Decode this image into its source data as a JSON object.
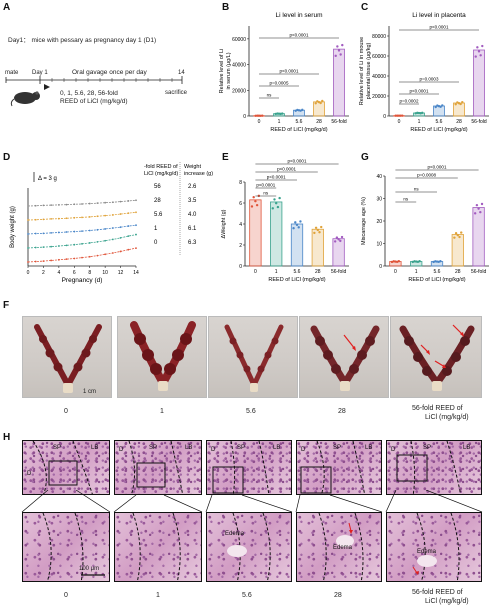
{
  "panels": {
    "A": "A",
    "B": "B",
    "C": "C",
    "D": "D",
    "E": "E",
    "F": "F",
    "G": "G",
    "H": "H"
  },
  "panel_a": {
    "day1_note": "Day1： mice with pessary as pregnancy day 1 (D1)",
    "mate": "mate",
    "day1": "Day 1",
    "day14": "14",
    "gavage": "Oral gavage once per day",
    "doses": "0, 1, 5.6, 28, 56-fold",
    "reed": "REED of LiCl (mg/kg/d)",
    "sacrifice": "sacrifice"
  },
  "panel_b": {
    "title": "Li level in serum",
    "ylabel_1": "Relative level of Li",
    "ylabel_2": "in serum (μg/L)",
    "yticks": [
      "0",
      "20000",
      "40000",
      "60000"
    ],
    "xticks": [
      "0",
      "1",
      "5.6",
      "28",
      "56-fold"
    ],
    "xlabel": "REED of LiCl (mg/kg/d)",
    "p_labels": [
      "ns",
      "p=0.0005",
      "p<0.0001",
      "p<0.0001"
    ]
  },
  "panel_c": {
    "title": "Li level in placenta",
    "ylabel_1": "Relative level of Li in mouse",
    "ylabel_2": "placental tissue (μg/kg)",
    "yticks": [
      "0",
      "20000",
      "40000",
      "60000",
      "80000"
    ],
    "xticks": [
      "0",
      "1",
      "5.6",
      "28",
      "56-fold"
    ],
    "xlabel": "REED of LiCl (mg/kg/d)",
    "p_labels": [
      "p=0.0002",
      "p<0.0001",
      "p=0.0003",
      "p<0.0001"
    ]
  },
  "panel_d": {
    "scale": "Δ = 3 g",
    "ylabel": "Body weight (g)",
    "xlabel": "Pregnancy (d)",
    "xticks": [
      "0",
      "2",
      "4",
      "6",
      "8",
      "10",
      "12",
      "14"
    ],
    "legend_head_1": "-fold REED of",
    "legend_head_2": "LiCl (mg/kg/d)",
    "legend_head_3": "Weight",
    "legend_head_4": "increase (g)",
    "rows": [
      {
        "dose": "56",
        "inc": "2.6",
        "color": "#8a8a8a"
      },
      {
        "dose": "28",
        "inc": "3.5",
        "color": "#e0a33a"
      },
      {
        "dose": "5.6",
        "inc": "4.0",
        "color": "#4a86c8"
      },
      {
        "dose": "1",
        "inc": "6.1",
        "color": "#3aa38e"
      },
      {
        "dose": "0",
        "inc": "6.3",
        "color": "#e0553a"
      }
    ]
  },
  "panel_e": {
    "ylabel": "ΔWeight (g)",
    "yticks": [
      "0",
      "2",
      "4",
      "6",
      "8"
    ],
    "xticks": [
      "0",
      "1",
      "5.6",
      "28",
      "56-fold"
    ],
    "xlabel": "REED of  LiCl (mg/kg/d)",
    "p_labels": [
      "p<0.0001",
      "p<0.0001",
      "p<0.0001",
      "p<0.0001",
      "ns"
    ]
  },
  "panel_g": {
    "ylabel": "Miscarrage age (%)",
    "yticks": [
      "0",
      "10",
      "20",
      "30",
      "40"
    ],
    "xticks": [
      "0",
      "1",
      "5.6",
      "28",
      "56-fold"
    ],
    "xlabel": "REED of LiCl (mg/kg/d)",
    "p_labels": [
      "p<0.0001",
      "p=0.0008",
      "ns",
      "ns"
    ]
  },
  "panel_f": {
    "scale": "1 cm",
    "labels": [
      "0",
      "1",
      "5.6",
      "28"
    ],
    "last_label_1": "56-fold REED of",
    "last_label_2": "LiCl (mg/kg/d)"
  },
  "panel_h": {
    "labels": [
      "0",
      "1",
      "5.6",
      "28"
    ],
    "last_label_1": "56-fold REED of",
    "last_label_2": "LiCl (mg/kg/d)",
    "scale": "100 μm",
    "sp": "SP",
    "lb": "LB",
    "d": "D",
    "edema": "Edema"
  },
  "colors": {
    "bar_purple": "#a25cc0",
    "bar_blue": "#4a86c8",
    "bar_orange": "#e0a33a",
    "bar_red": "#e0553a",
    "bar_teal": "#3aa38e",
    "arrow_red": "#e02020"
  },
  "chart_data": [
    {
      "type": "bar",
      "title": "Li level in serum",
      "categories": [
        "0",
        "1",
        "5.6",
        "28",
        "56-fold"
      ],
      "values": [
        200,
        1800,
        4500,
        11000,
        52000
      ],
      "ylim": [
        0,
        70000
      ],
      "xlabel": "REED of LiCl (mg/kg/d)",
      "ylabel": "Relative level of Li in serum (μg/L)"
    },
    {
      "type": "bar",
      "title": "Li level in placenta",
      "categories": [
        "0",
        "1",
        "5.6",
        "28",
        "56-fold"
      ],
      "values": [
        300,
        3000,
        10000,
        13000,
        66000
      ],
      "ylim": [
        0,
        90000
      ],
      "xlabel": "REED of LiCl (mg/kg/d)",
      "ylabel": "Relative level of Li in mouse placental tissue (μg/kg)"
    },
    {
      "type": "line",
      "x": [
        0,
        1,
        2,
        3,
        4,
        5,
        6,
        7,
        8,
        9,
        10,
        11,
        12,
        13,
        14
      ],
      "xlabel": "Pregnancy (d)",
      "ylabel": "Body weight (g)",
      "series": [
        {
          "name": "56",
          "values": [
            0,
            0.1,
            0.3,
            0.4,
            0.5,
            0.6,
            0.8,
            0.9,
            1.1,
            1.3,
            1.5,
            1.7,
            2.0,
            2.3,
            2.6
          ]
        },
        {
          "name": "28",
          "values": [
            0,
            0.1,
            0.3,
            0.5,
            0.6,
            0.8,
            1.0,
            1.2,
            1.4,
            1.7,
            2.0,
            2.3,
            2.7,
            3.1,
            3.5
          ]
        },
        {
          "name": "5.6",
          "values": [
            0,
            0.2,
            0.3,
            0.5,
            0.7,
            0.9,
            1.1,
            1.3,
            1.6,
            1.9,
            2.3,
            2.7,
            3.1,
            3.6,
            4.0
          ]
        },
        {
          "name": "1",
          "values": [
            0,
            0.2,
            0.4,
            0.6,
            0.9,
            1.2,
            1.5,
            1.9,
            2.3,
            2.8,
            3.3,
            3.9,
            4.6,
            5.4,
            6.1
          ]
        },
        {
          "name": "0",
          "values": [
            0,
            0.2,
            0.4,
            0.7,
            1.0,
            1.3,
            1.6,
            2.0,
            2.4,
            2.9,
            3.5,
            4.1,
            4.8,
            5.6,
            6.3
          ]
        }
      ]
    },
    {
      "type": "bar",
      "categories": [
        "0",
        "1",
        "5.6",
        "28",
        "56-fold"
      ],
      "values": [
        6.3,
        6.1,
        4.0,
        3.5,
        2.6
      ],
      "ylim": [
        0,
        8
      ],
      "xlabel": "REED of  LiCl (mg/kg/d)",
      "ylabel": "ΔWeight (g)"
    },
    {
      "type": "bar",
      "categories": [
        "0",
        "1",
        "5.6",
        "28",
        "56-fold"
      ],
      "values": [
        2,
        2,
        2,
        14,
        26
      ],
      "ylim": [
        0,
        40
      ],
      "xlabel": "REED of LiCl (mg/kg/d)",
      "ylabel": "Miscarrage age (%)"
    }
  ]
}
